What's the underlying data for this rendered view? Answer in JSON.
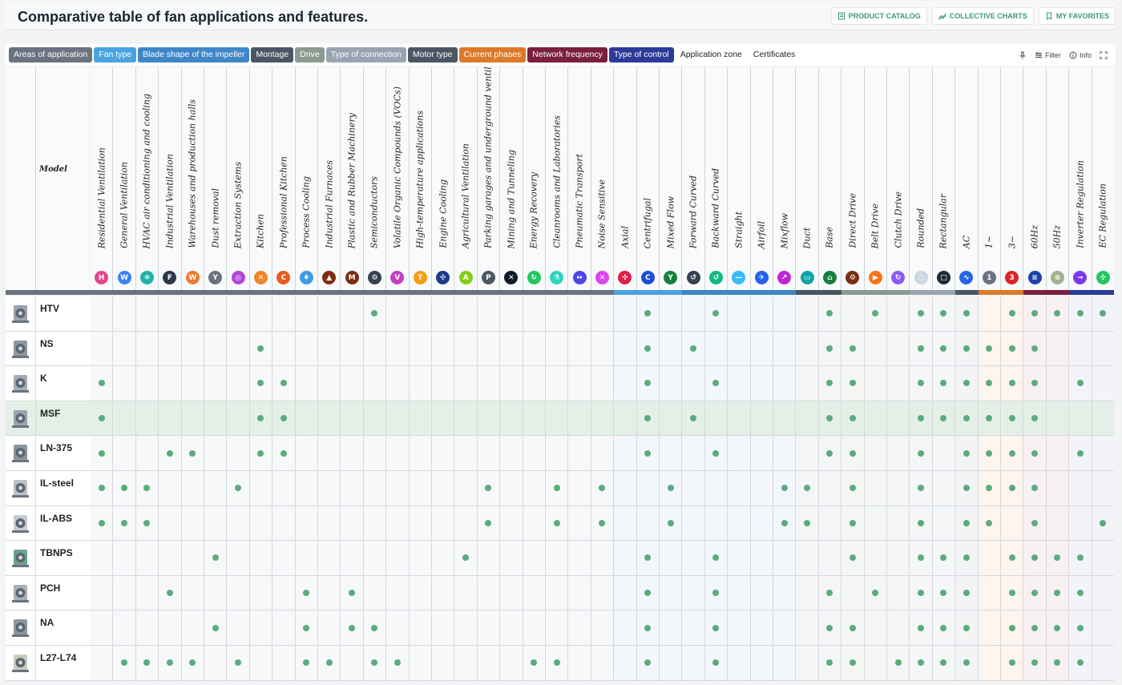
{
  "page_title": "Comparative table of fan applications and features.",
  "top_buttons": {
    "catalog": "PRODUCT CATALOG",
    "charts": "COLLECTIVE CHARTS",
    "favorites": "MY FAVORITES"
  },
  "tabs": [
    {
      "label": "Areas of application",
      "color": "#6b7280"
    },
    {
      "label": "Fan type",
      "color": "#4aa3e0"
    },
    {
      "label": "Blade shape of the impeller",
      "color": "#3f86c8"
    },
    {
      "label": "Montage",
      "color": "#4b5563"
    },
    {
      "label": "Drive",
      "color": "#8a9a90"
    },
    {
      "label": "Type of connection",
      "color": "#9aa3b2"
    },
    {
      "label": "Motor type",
      "color": "#4b5563"
    },
    {
      "label": "Current phases",
      "color": "#dd7a2a"
    },
    {
      "label": "Network frequency",
      "color": "#7a1f3d"
    },
    {
      "label": "Type of control",
      "color": "#2c3a9a"
    },
    {
      "label": "Application zone",
      "color": ""
    },
    {
      "label": "Certificates",
      "color": ""
    }
  ],
  "tools": {
    "filter": "Filter",
    "info": "Info"
  },
  "model_header": "Model",
  "columns": [
    {
      "label": "Residential Ventilation",
      "group": 0,
      "icon_color": "#e2468f",
      "icon": "home-icon"
    },
    {
      "label": "General Ventilation",
      "group": 0,
      "icon_color": "#3b82f6",
      "icon": "wind-icon"
    },
    {
      "label": "HVAC air conditioning and cooling",
      "group": 0,
      "icon_color": "#20b2aa",
      "icon": "snowflake-icon"
    },
    {
      "label": "Industrial Ventilation",
      "group": 0,
      "icon_color": "#2d3748",
      "icon": "factory-icon"
    },
    {
      "label": "Warehouses and production halls",
      "group": 0,
      "icon_color": "#ee7b30",
      "icon": "warehouse-icon"
    },
    {
      "label": "Dust removal",
      "group": 0,
      "icon_color": "#6b7280",
      "icon": "funnel-icon"
    },
    {
      "label": "Extraction Systems",
      "group": 0,
      "icon_color": "#b345d6",
      "icon": "extraction-icon"
    },
    {
      "label": "Kitchen",
      "group": 0,
      "icon_color": "#f0852a",
      "icon": "cutlery-icon"
    },
    {
      "label": "Professional Kitchen",
      "group": 0,
      "icon_color": "#e85a20",
      "icon": "chef-icon"
    },
    {
      "label": "Process Cooling",
      "group": 0,
      "icon_color": "#3b9be6",
      "icon": "droplets-icon"
    },
    {
      "label": "Industrial Furnaces",
      "group": 0,
      "icon_color": "#7c2d12",
      "icon": "flame-icon"
    },
    {
      "label": "Plastic and Rubber Machinery",
      "group": 0,
      "icon_color": "#7c2d12",
      "icon": "machinery-icon"
    },
    {
      "label": "Semiconductors",
      "group": 0,
      "icon_color": "#374151",
      "icon": "chip-icon"
    },
    {
      "label": "Volatile Organic Compounds (VOCs)",
      "group": 0,
      "icon_color": "#c43fc0",
      "icon": "voc-icon"
    },
    {
      "label": "High-temperature applications",
      "group": 0,
      "icon_color": "#f59e0b",
      "icon": "thermometer-icon"
    },
    {
      "label": "Engine Cooling",
      "group": 0,
      "icon_color": "#1e3a8a",
      "icon": "fan-icon"
    },
    {
      "label": "Agricultural Ventilation",
      "group": 0,
      "icon_color": "#84cc16",
      "icon": "tractor-icon"
    },
    {
      "label": "Parking garages and underground ventilation",
      "group": 0,
      "icon_color": "#4b5563",
      "icon": "parking-icon"
    },
    {
      "label": "Mining and Tunneling",
      "group": 0,
      "icon_color": "#111827",
      "icon": "tools-icon"
    },
    {
      "label": "Energy Recovery",
      "group": 0,
      "icon_color": "#22c55e",
      "icon": "recycle-icon"
    },
    {
      "label": "Cleanrooms and Laboratories",
      "group": 0,
      "icon_color": "#2dd4bf",
      "icon": "flask-icon"
    },
    {
      "label": "Pneumatic Transport",
      "group": 0,
      "icon_color": "#4f46e5",
      "icon": "transport-icon"
    },
    {
      "label": "Noise Sensitive",
      "group": 0,
      "icon_color": "#d946ef",
      "icon": "mute-icon"
    },
    {
      "label": "Axial",
      "group": 1,
      "icon_color": "#e11d48",
      "icon": "axial-icon"
    },
    {
      "label": "Centrifugal",
      "group": 1,
      "icon_color": "#1d4ed8",
      "icon": "centrifugal-icon"
    },
    {
      "label": "Mixed Flow",
      "group": 1,
      "icon_color": "#15803d",
      "icon": "mixed-flow-icon"
    },
    {
      "label": "Forward Curved",
      "group": 2,
      "icon_color": "#374151",
      "icon": "forward-curved-icon"
    },
    {
      "label": "Backward Curved",
      "group": 2,
      "icon_color": "#10b981",
      "icon": "backward-curved-icon"
    },
    {
      "label": "Straight",
      "group": 2,
      "icon_color": "#38bdf8",
      "icon": "straight-icon"
    },
    {
      "label": "Airfoil",
      "group": 2,
      "icon_color": "#2563eb",
      "icon": "airfoil-icon"
    },
    {
      "label": "Mixflow",
      "group": 2,
      "icon_color": "#c026d3",
      "icon": "mixflow-icon"
    },
    {
      "label": "Duct",
      "group": 3,
      "icon_color": "#0ea5a4",
      "icon": "duct-icon"
    },
    {
      "label": "Base",
      "group": 3,
      "icon_color": "#15803d",
      "icon": "base-icon"
    },
    {
      "label": "Direct Drive",
      "group": 4,
      "icon_color": "#7c2d12",
      "icon": "direct-drive-icon"
    },
    {
      "label": "Belt Drive",
      "group": 4,
      "icon_color": "#f97316",
      "icon": "belt-drive-icon"
    },
    {
      "label": "Clutch Drive",
      "group": 4,
      "icon_color": "#8b5cf6",
      "icon": "clutch-drive-icon"
    },
    {
      "label": "Rounded",
      "group": 5,
      "icon_color": "#cbd5e1",
      "icon": "rounded-icon"
    },
    {
      "label": "Rectangular",
      "group": 5,
      "icon_color": "#1f2937",
      "icon": "rectangular-icon"
    },
    {
      "label": "AC",
      "group": 6,
      "icon_color": "#2563eb",
      "icon": "ac-motor-icon"
    },
    {
      "label": "1~",
      "group": 7,
      "icon_color": "#6b7280",
      "icon": "one-phase-icon"
    },
    {
      "label": "3~",
      "group": 7,
      "icon_color": "#dc2626",
      "icon": "three-phase-icon"
    },
    {
      "label": "60Hz",
      "group": 8,
      "icon_color": "#1e40af",
      "icon": "60hz-icon"
    },
    {
      "label": "50Hz",
      "group": 8,
      "icon_color": "#a3b18a",
      "icon": "50hz-icon"
    },
    {
      "label": "Inverter Regulation",
      "group": 9,
      "icon_color": "#7c3aed",
      "icon": "inverter-icon"
    },
    {
      "label": "EC Regulation",
      "group": 9,
      "icon_color": "#22c55e",
      "icon": "ec-regulation-icon"
    }
  ],
  "models": [
    {
      "name": "HTV",
      "dots": [
        12,
        24,
        27,
        32,
        34,
        36,
        37,
        38,
        40,
        41,
        42,
        43,
        44
      ]
    },
    {
      "name": "NS",
      "dots": [
        7,
        24,
        26,
        32,
        33,
        36,
        37,
        38,
        39,
        40,
        41
      ]
    },
    {
      "name": "K",
      "dots": [
        0,
        7,
        8,
        24,
        27,
        32,
        33,
        36,
        37,
        38,
        39,
        40,
        41,
        43
      ]
    },
    {
      "name": "MSF",
      "dots": [
        0,
        7,
        8,
        24,
        26,
        32,
        33,
        36,
        37,
        38,
        39,
        40,
        41
      ],
      "selected": true
    },
    {
      "name": "LN-375",
      "dots": [
        0,
        3,
        4,
        7,
        8,
        24,
        27,
        32,
        33,
        36,
        38,
        39,
        40,
        41,
        43
      ]
    },
    {
      "name": "IL-steel",
      "dots": [
        0,
        1,
        2,
        6,
        17,
        20,
        22,
        25,
        30,
        31,
        33,
        36,
        38,
        39,
        40,
        41
      ]
    },
    {
      "name": "IL-ABS",
      "dots": [
        0,
        1,
        2,
        17,
        20,
        22,
        25,
        30,
        31,
        33,
        36,
        38,
        39,
        41,
        44
      ]
    },
    {
      "name": "TBNPS",
      "dots": [
        5,
        16,
        24,
        27,
        33,
        36,
        37,
        38,
        40,
        41,
        42,
        43
      ]
    },
    {
      "name": "PCH",
      "dots": [
        3,
        9,
        11,
        24,
        27,
        32,
        34,
        36,
        37,
        38,
        40,
        41,
        42,
        43
      ]
    },
    {
      "name": "NA",
      "dots": [
        5,
        9,
        11,
        12,
        24,
        27,
        32,
        33,
        36,
        37,
        38,
        40,
        41,
        42,
        43
      ]
    },
    {
      "name": "L27-L74",
      "dots": [
        1,
        2,
        3,
        4,
        6,
        9,
        10,
        12,
        13,
        19,
        20,
        24,
        27,
        32,
        33,
        35,
        36,
        37,
        38,
        40,
        41,
        42,
        43
      ]
    }
  ]
}
